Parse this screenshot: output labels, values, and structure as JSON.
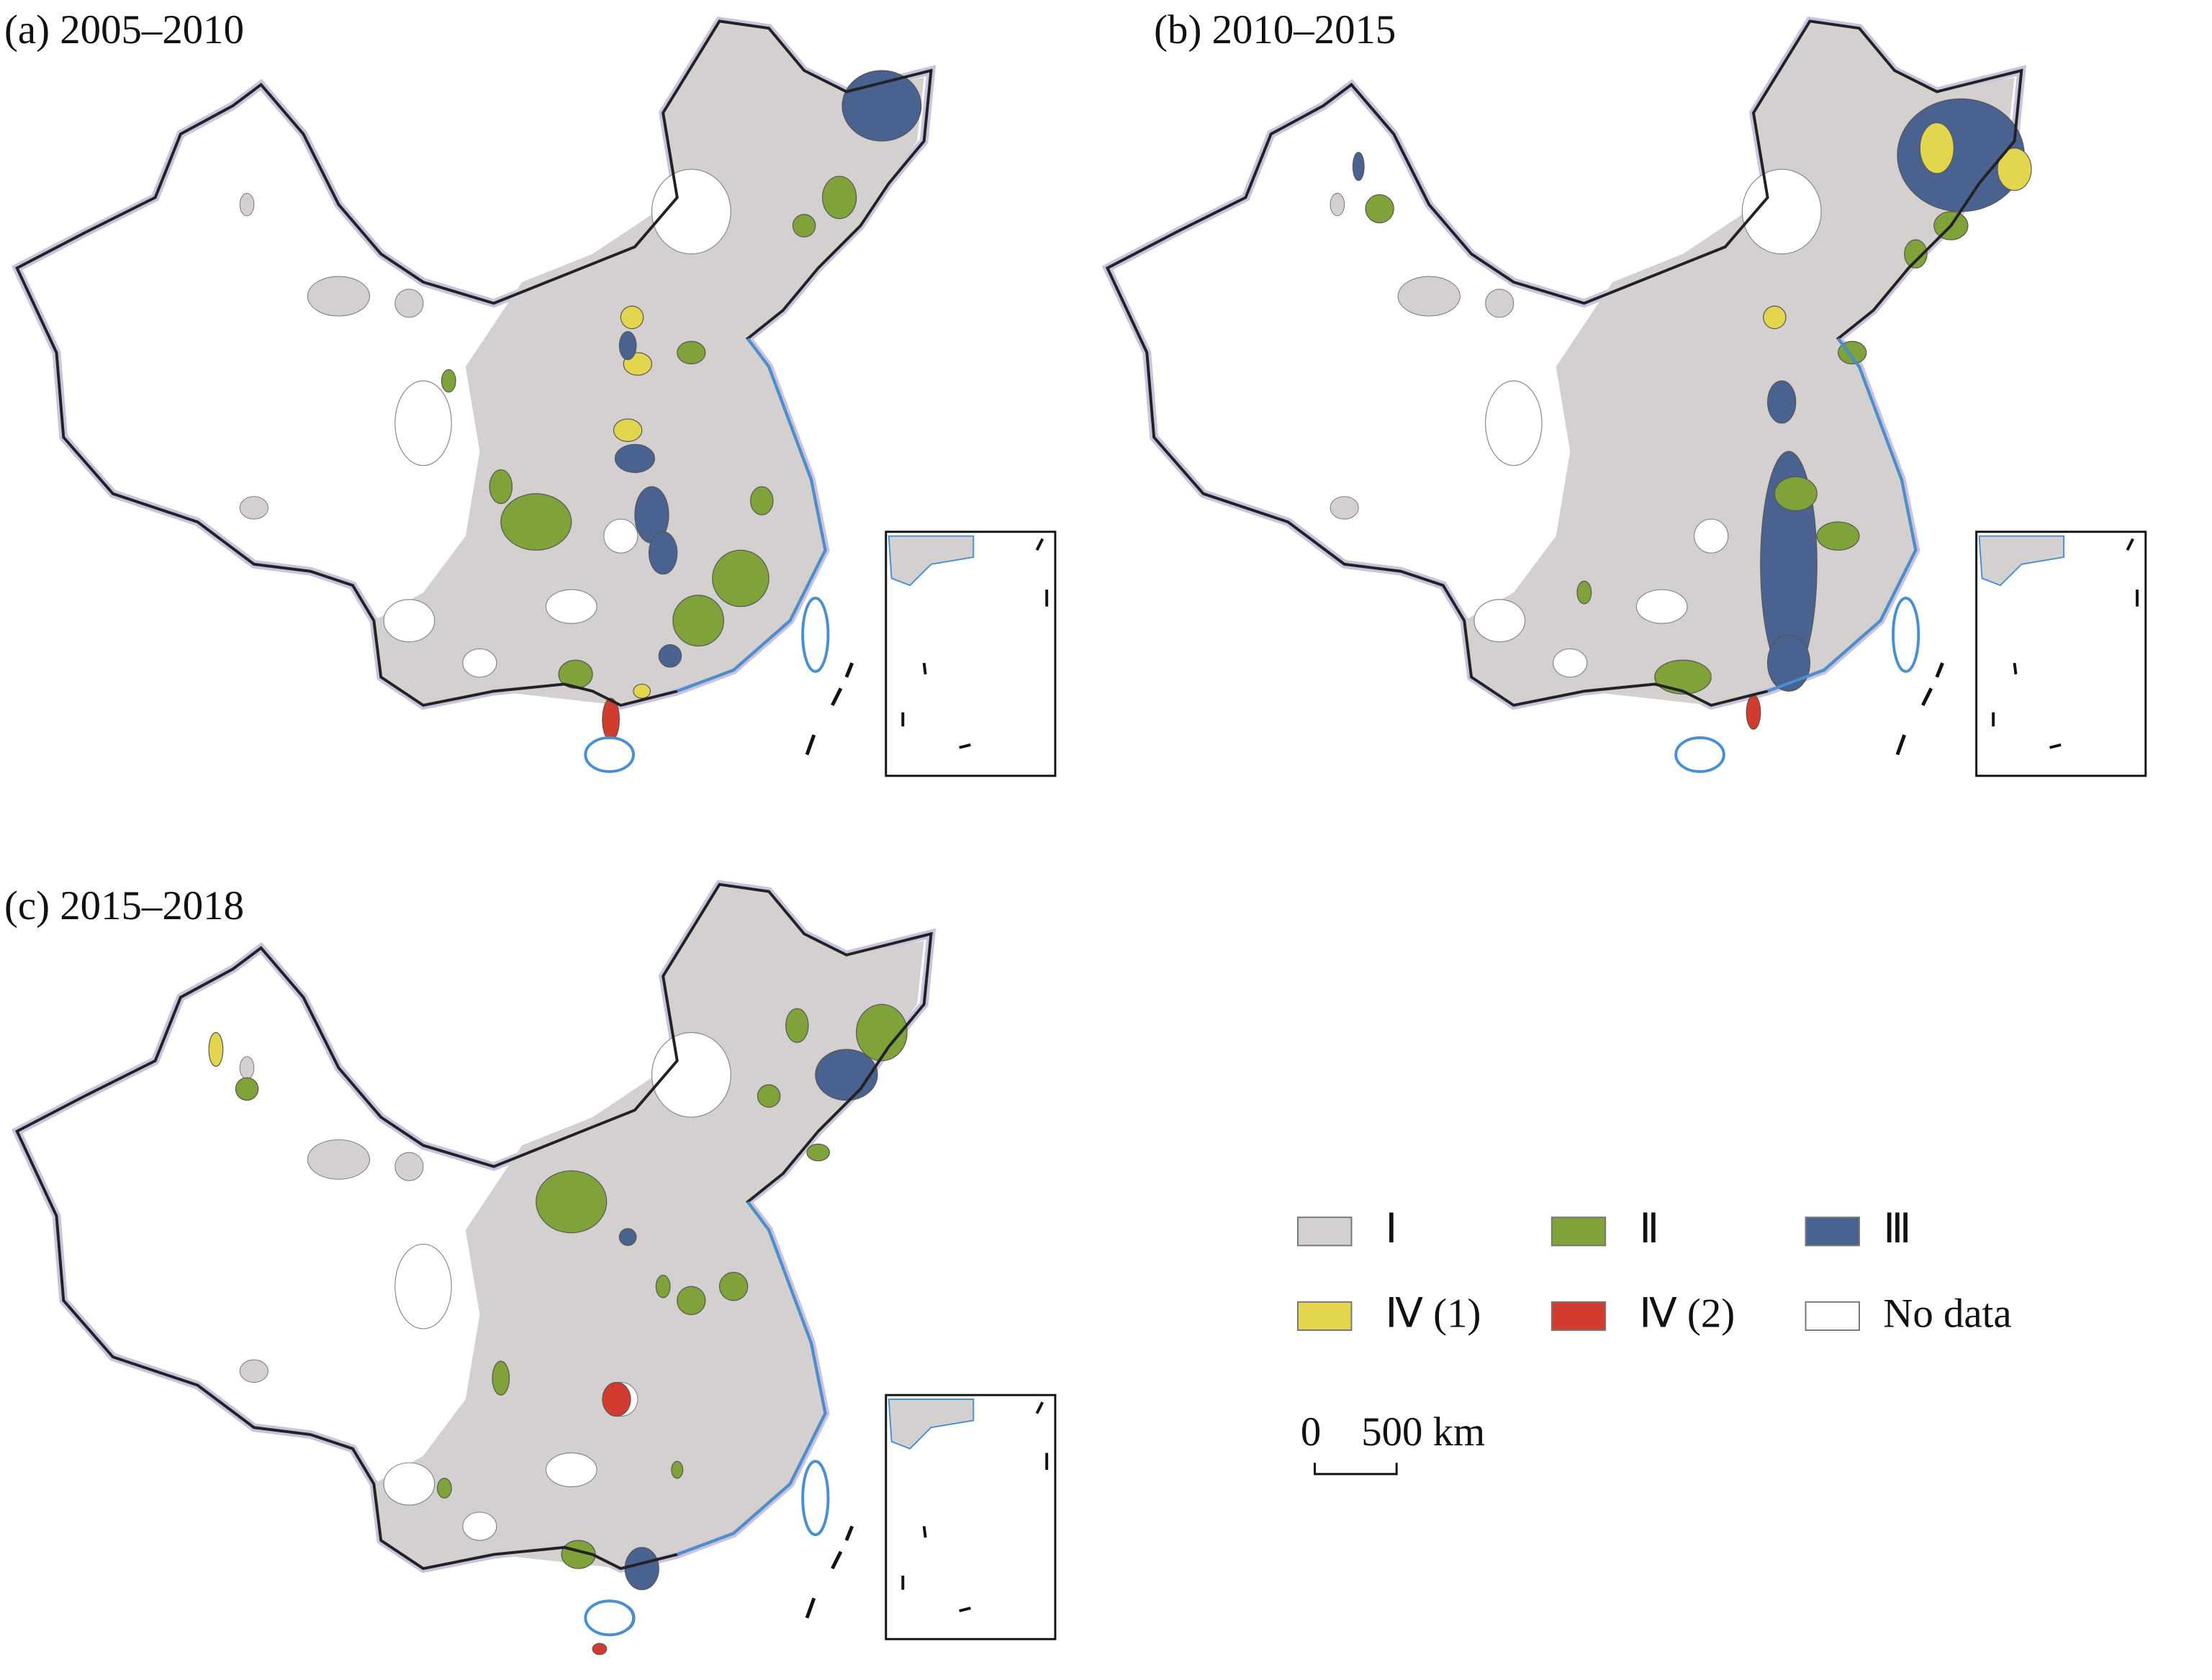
{
  "panels": [
    {
      "title": "(a) 2005–2010"
    },
    {
      "title": "(b) 2010–2015"
    },
    {
      "title": "(c) 2015–2018"
    }
  ],
  "legend": [
    {
      "label": "Ⅰ",
      "color": "#d5d0d0"
    },
    {
      "label": "Ⅱ",
      "color": "#7fa33a"
    },
    {
      "label": "Ⅲ",
      "color": "#4a6290"
    },
    {
      "label": "Ⅳ (1)",
      "color": "#e3d64e"
    },
    {
      "label": "Ⅳ (2)",
      "color": "#d23c2e"
    },
    {
      "label": "No data",
      "color": "#ffffff"
    }
  ],
  "scale_bar": {
    "start": "0",
    "end": "500 km"
  }
}
